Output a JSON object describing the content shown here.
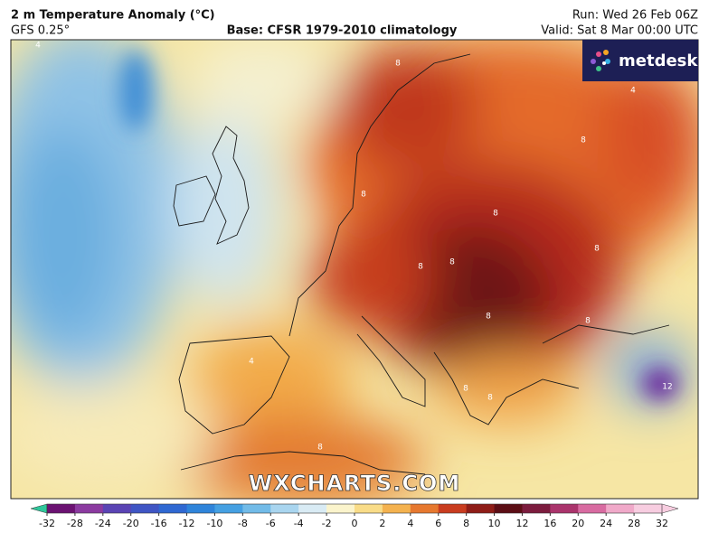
{
  "header": {
    "title": "2 m Temperature Anomaly (°C)",
    "model": "GFS 0.25°",
    "base": "Base: CFSR 1979-2010 climatology",
    "run": "Run: Wed 26 Feb 06Z",
    "valid": "Valid: Sat 8 Mar 00:00 UTC"
  },
  "logo": "metdesk",
  "watermark": "WXCHARTS.COM",
  "contour_labels": [
    4,
    4,
    8,
    8,
    8,
    8,
    8,
    8,
    8,
    8,
    8,
    8,
    8,
    12,
    4,
    8
  ],
  "colorbar": {
    "ticks": [
      -32,
      -28,
      -24,
      -20,
      -16,
      -12,
      -10,
      -8,
      -6,
      -4,
      -2,
      0,
      2,
      4,
      6,
      8,
      10,
      12,
      16,
      20,
      24,
      28,
      32
    ],
    "colors": [
      "#6b1272",
      "#8b3aa0",
      "#5a44b4",
      "#3f55c4",
      "#2f68d2",
      "#2f84da",
      "#45a0e2",
      "#72bbe8",
      "#a9d5ef",
      "#d9ebf4",
      "#fbf4cc",
      "#f9dc88",
      "#f4b24f",
      "#e6782f",
      "#c93c1f",
      "#8f1d17",
      "#5c0e15",
      "#7c1c3e",
      "#aa346c",
      "#d86ba1",
      "#f0a9c9",
      "#f7cde0"
    ],
    "under_color": "#2fc79b",
    "over_color": "#f7cde0"
  }
}
